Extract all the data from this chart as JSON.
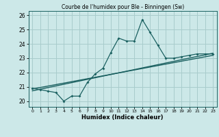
{
  "title": "Courbe de l'humidex pour Ble - Binningen (Sw)",
  "xlabel": "Humidex (Indice chaleur)",
  "bg_color": "#cce8e8",
  "grid_color": "#a8cccc",
  "line_color": "#1a6060",
  "xlim": [
    -0.5,
    23.5
  ],
  "ylim": [
    19.6,
    26.3
  ],
  "yticks": [
    20,
    21,
    22,
    23,
    24,
    25,
    26
  ],
  "xticks": [
    0,
    1,
    2,
    3,
    4,
    5,
    6,
    7,
    8,
    9,
    10,
    11,
    12,
    13,
    14,
    15,
    16,
    17,
    18,
    19,
    20,
    21,
    22,
    23
  ],
  "main_x": [
    0,
    1,
    2,
    3,
    4,
    5,
    6,
    7,
    8,
    9,
    10,
    11,
    12,
    13,
    14,
    15,
    16,
    17,
    18,
    19,
    20,
    21,
    22,
    23
  ],
  "main_y": [
    20.9,
    20.8,
    20.7,
    20.6,
    20.0,
    20.35,
    20.35,
    21.3,
    21.9,
    22.3,
    23.4,
    24.4,
    24.2,
    24.2,
    25.7,
    24.8,
    23.9,
    23.0,
    23.0,
    23.1,
    23.2,
    23.3,
    23.3,
    23.3
  ],
  "line1_x": [
    0,
    23
  ],
  "line1_y": [
    20.85,
    23.2
  ],
  "line2_x": [
    0,
    23
  ],
  "line2_y": [
    20.72,
    23.35
  ]
}
